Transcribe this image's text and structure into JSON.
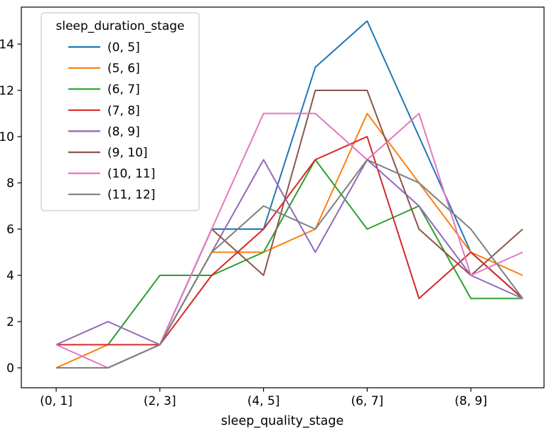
{
  "chart_data": {
    "type": "line",
    "title": "",
    "xlabel": "sleep_quality_stage",
    "ylabel": "",
    "x_values": [
      0,
      1,
      2,
      3,
      4,
      5,
      6,
      7,
      8,
      9
    ],
    "x_tick_positions": [
      0,
      2,
      4,
      6,
      8
    ],
    "x_tick_labels": [
      "(0, 1]",
      "(2, 3]",
      "(4, 5]",
      "(6, 7]",
      "(8, 9]"
    ],
    "y_ticks": [
      0,
      2,
      4,
      6,
      8,
      10,
      12,
      14
    ],
    "ylim": [
      -0.75,
      15.6
    ],
    "grid": "off",
    "legend_title": "sleep_duration_stage",
    "legend_position": "upper left",
    "series": [
      {
        "name": "(0, 5]",
        "color": "#1f77b4",
        "values": [
          0,
          0,
          1,
          6,
          6,
          13,
          15,
          10,
          5,
          3
        ]
      },
      {
        "name": "(5, 6]",
        "color": "#ff7f0e",
        "values": [
          0,
          1,
          1,
          5,
          5,
          6,
          11,
          8,
          5,
          4
        ]
      },
      {
        "name": "(6, 7]",
        "color": "#2ca02c",
        "values": [
          1,
          1,
          4,
          4,
          5,
          9,
          6,
          7,
          3,
          3
        ]
      },
      {
        "name": "(7, 8]",
        "color": "#d62728",
        "values": [
          1,
          1,
          1,
          4,
          6,
          9,
          10,
          3,
          5,
          3
        ]
      },
      {
        "name": "(8, 9]",
        "color": "#9467bd",
        "values": [
          1,
          2,
          1,
          5,
          9,
          5,
          9,
          7,
          4,
          3
        ]
      },
      {
        "name": "(9, 10]",
        "color": "#8c564b",
        "values": [
          0,
          0,
          1,
          6,
          4,
          12,
          12,
          6,
          4,
          6
        ]
      },
      {
        "name": "(10, 11]",
        "color": "#e377c2",
        "values": [
          1,
          0,
          1,
          6,
          11,
          11,
          9,
          11,
          4,
          5
        ]
      },
      {
        "name": "(11, 12]",
        "color": "#7f7f7f",
        "values": [
          0,
          0,
          1,
          5,
          7,
          6,
          9,
          8,
          6,
          3
        ]
      }
    ]
  }
}
